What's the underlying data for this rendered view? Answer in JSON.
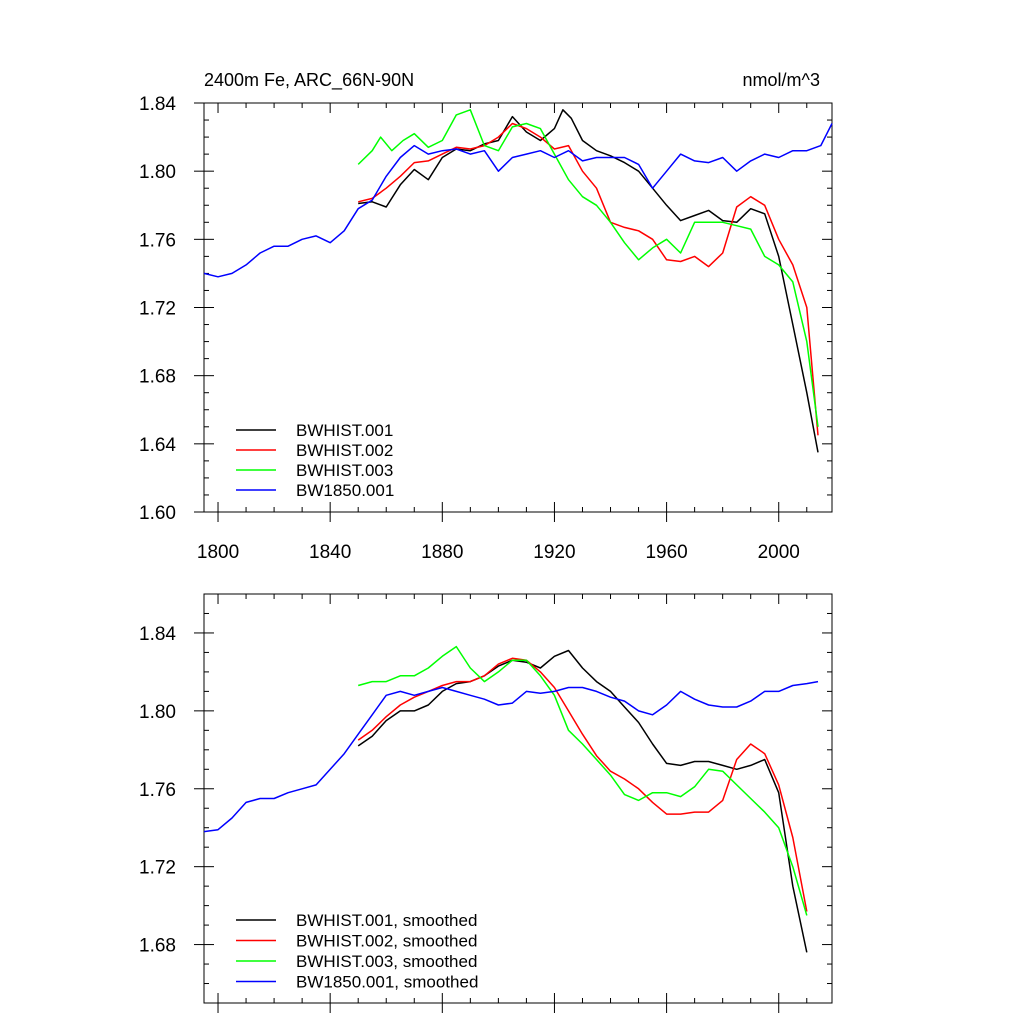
{
  "chart_data": [
    {
      "type": "line",
      "title_left": "2400m Fe, ARC_66N-90N",
      "title_right": "nmol/m^3",
      "xlim": [
        1795,
        2019
      ],
      "ylim": [
        1.6,
        1.84
      ],
      "xticks": [
        1800,
        1840,
        1880,
        1920,
        1960,
        2000
      ],
      "xtick_labels": [
        "1800",
        "1840",
        "1880",
        "1920",
        "1960",
        "2000"
      ],
      "yticks": [
        1.6,
        1.64,
        1.68,
        1.72,
        1.76,
        1.8,
        1.84
      ],
      "ytick_labels": [
        "1.60",
        "1.64",
        "1.68",
        "1.72",
        "1.76",
        "1.80",
        "1.84"
      ],
      "series": [
        {
          "name": "BWHIST.001",
          "color": "#000000",
          "x": [
            1850,
            1855,
            1860,
            1865,
            1870,
            1875,
            1880,
            1885,
            1890,
            1895,
            1900,
            1905,
            1910,
            1915,
            1920,
            1923,
            1926,
            1930,
            1935,
            1940,
            1945,
            1950,
            1955,
            1960,
            1965,
            1970,
            1975,
            1980,
            1985,
            1990,
            1995,
            2000,
            2005,
            2010,
            2014
          ],
          "y": [
            1.781,
            1.782,
            1.779,
            1.792,
            1.801,
            1.795,
            1.808,
            1.813,
            1.812,
            1.816,
            1.818,
            1.832,
            1.823,
            1.818,
            1.825,
            1.836,
            1.831,
            1.818,
            1.812,
            1.809,
            1.805,
            1.8,
            1.79,
            1.78,
            1.771,
            1.774,
            1.777,
            1.771,
            1.77,
            1.778,
            1.775,
            1.75,
            1.71,
            1.67,
            1.635
          ]
        },
        {
          "name": "BWHIST.002",
          "color": "#ff0000",
          "x": [
            1850,
            1855,
            1860,
            1865,
            1870,
            1875,
            1880,
            1885,
            1890,
            1895,
            1900,
            1905,
            1910,
            1915,
            1920,
            1925,
            1930,
            1935,
            1940,
            1945,
            1950,
            1955,
            1960,
            1965,
            1970,
            1975,
            1980,
            1985,
            1990,
            1995,
            2000,
            2005,
            2010,
            2014
          ],
          "y": [
            1.782,
            1.784,
            1.79,
            1.797,
            1.805,
            1.806,
            1.81,
            1.814,
            1.813,
            1.815,
            1.82,
            1.828,
            1.825,
            1.82,
            1.813,
            1.815,
            1.8,
            1.79,
            1.77,
            1.767,
            1.765,
            1.76,
            1.748,
            1.747,
            1.75,
            1.744,
            1.752,
            1.779,
            1.785,
            1.78,
            1.76,
            1.745,
            1.72,
            1.645
          ]
        },
        {
          "name": "BWHIST.003",
          "color": "#00ff00",
          "x": [
            1850,
            1855,
            1858,
            1862,
            1866,
            1870,
            1875,
            1880,
            1885,
            1890,
            1895,
            1900,
            1905,
            1910,
            1915,
            1920,
            1925,
            1930,
            1935,
            1940,
            1945,
            1950,
            1955,
            1960,
            1965,
            1970,
            1975,
            1980,
            1985,
            1990,
            1995,
            2000,
            2005,
            2010,
            2014
          ],
          "y": [
            1.804,
            1.812,
            1.82,
            1.812,
            1.818,
            1.822,
            1.814,
            1.818,
            1.833,
            1.836,
            1.815,
            1.812,
            1.826,
            1.828,
            1.825,
            1.81,
            1.795,
            1.785,
            1.78,
            1.77,
            1.758,
            1.748,
            1.755,
            1.76,
            1.752,
            1.77,
            1.77,
            1.77,
            1.768,
            1.766,
            1.75,
            1.745,
            1.735,
            1.7,
            1.65
          ]
        },
        {
          "name": "BW1850.001",
          "color": "#0000ff",
          "x": [
            1795,
            1800,
            1805,
            1810,
            1815,
            1820,
            1825,
            1830,
            1835,
            1840,
            1845,
            1850,
            1855,
            1860,
            1865,
            1870,
            1875,
            1880,
            1885,
            1890,
            1895,
            1900,
            1905,
            1910,
            1915,
            1920,
            1925,
            1930,
            1935,
            1940,
            1945,
            1950,
            1955,
            1960,
            1965,
            1970,
            1975,
            1980,
            1985,
            1990,
            1995,
            2000,
            2005,
            2010,
            2015,
            2019
          ],
          "y": [
            1.74,
            1.738,
            1.74,
            1.745,
            1.752,
            1.756,
            1.756,
            1.76,
            1.762,
            1.758,
            1.765,
            1.778,
            1.783,
            1.797,
            1.808,
            1.815,
            1.81,
            1.812,
            1.813,
            1.81,
            1.812,
            1.8,
            1.808,
            1.81,
            1.812,
            1.808,
            1.812,
            1.806,
            1.808,
            1.808,
            1.808,
            1.804,
            1.79,
            1.8,
            1.81,
            1.806,
            1.805,
            1.808,
            1.8,
            1.806,
            1.81,
            1.808,
            1.812,
            1.812,
            1.815,
            1.828
          ]
        }
      ],
      "legend": [
        "BWHIST.001",
        "BWHIST.002",
        "BWHIST.003",
        "BW1850.001"
      ],
      "legend_position": "bottom-left"
    },
    {
      "type": "line",
      "xlim": [
        1795,
        2019
      ],
      "ylim": [
        1.65,
        1.86
      ],
      "xticks": [
        1800,
        1840,
        1880,
        1920,
        1960,
        2000
      ],
      "yticks": [
        1.68,
        1.72,
        1.76,
        1.8,
        1.84
      ],
      "ytick_labels": [
        "1.68",
        "1.72",
        "1.76",
        "1.80",
        "1.84"
      ],
      "series": [
        {
          "name": "BWHIST.001, smoothed",
          "color": "#000000",
          "x": [
            1850,
            1855,
            1860,
            1865,
            1870,
            1875,
            1880,
            1885,
            1890,
            1895,
            1900,
            1905,
            1910,
            1915,
            1920,
            1925,
            1930,
            1935,
            1940,
            1945,
            1950,
            1955,
            1960,
            1965,
            1970,
            1975,
            1980,
            1985,
            1990,
            1995,
            2000,
            2005,
            2010
          ],
          "y": [
            1.782,
            1.787,
            1.795,
            1.8,
            1.8,
            1.803,
            1.81,
            1.814,
            1.815,
            1.818,
            1.823,
            1.826,
            1.825,
            1.822,
            1.828,
            1.831,
            1.822,
            1.815,
            1.81,
            1.802,
            1.794,
            1.783,
            1.773,
            1.772,
            1.774,
            1.774,
            1.772,
            1.77,
            1.772,
            1.775,
            1.758,
            1.71,
            1.676
          ]
        },
        {
          "name": "BWHIST.002, smoothed",
          "color": "#ff0000",
          "x": [
            1850,
            1855,
            1860,
            1865,
            1870,
            1875,
            1880,
            1885,
            1890,
            1895,
            1900,
            1905,
            1910,
            1915,
            1920,
            1925,
            1930,
            1935,
            1940,
            1945,
            1950,
            1955,
            1960,
            1965,
            1970,
            1975,
            1980,
            1985,
            1990,
            1995,
            2000,
            2005,
            2010
          ],
          "y": [
            1.785,
            1.79,
            1.797,
            1.803,
            1.807,
            1.81,
            1.813,
            1.815,
            1.815,
            1.818,
            1.824,
            1.827,
            1.826,
            1.82,
            1.812,
            1.8,
            1.788,
            1.777,
            1.769,
            1.765,
            1.76,
            1.753,
            1.747,
            1.747,
            1.748,
            1.748,
            1.754,
            1.775,
            1.783,
            1.778,
            1.762,
            1.735,
            1.697
          ]
        },
        {
          "name": "BWHIST.003, smoothed",
          "color": "#00ff00",
          "x": [
            1850,
            1855,
            1860,
            1865,
            1870,
            1875,
            1880,
            1885,
            1890,
            1895,
            1900,
            1905,
            1910,
            1915,
            1920,
            1925,
            1930,
            1935,
            1940,
            1945,
            1950,
            1955,
            1960,
            1965,
            1970,
            1975,
            1980,
            1985,
            1990,
            1995,
            2000,
            2005,
            2010
          ],
          "y": [
            1.813,
            1.815,
            1.815,
            1.818,
            1.818,
            1.822,
            1.828,
            1.833,
            1.822,
            1.815,
            1.82,
            1.826,
            1.826,
            1.818,
            1.808,
            1.79,
            1.783,
            1.775,
            1.767,
            1.757,
            1.754,
            1.758,
            1.758,
            1.756,
            1.761,
            1.77,
            1.769,
            1.762,
            1.755,
            1.748,
            1.74,
            1.72,
            1.695
          ]
        },
        {
          "name": "BW1850.001, smoothed",
          "color": "#0000ff",
          "x": [
            1795,
            1800,
            1805,
            1810,
            1815,
            1820,
            1825,
            1830,
            1835,
            1840,
            1845,
            1850,
            1855,
            1860,
            1865,
            1870,
            1875,
            1880,
            1885,
            1890,
            1895,
            1900,
            1905,
            1910,
            1915,
            1920,
            1925,
            1930,
            1935,
            1940,
            1945,
            1950,
            1955,
            1960,
            1965,
            1970,
            1975,
            1980,
            1985,
            1990,
            1995,
            2000,
            2005,
            2010,
            2014
          ],
          "y": [
            1.738,
            1.739,
            1.745,
            1.753,
            1.755,
            1.755,
            1.758,
            1.76,
            1.762,
            1.77,
            1.778,
            1.788,
            1.798,
            1.808,
            1.81,
            1.808,
            1.81,
            1.812,
            1.81,
            1.808,
            1.806,
            1.803,
            1.804,
            1.81,
            1.809,
            1.81,
            1.812,
            1.812,
            1.81,
            1.807,
            1.805,
            1.8,
            1.798,
            1.803,
            1.81,
            1.806,
            1.803,
            1.802,
            1.802,
            1.805,
            1.81,
            1.81,
            1.813,
            1.814,
            1.815
          ]
        }
      ],
      "legend": [
        "BWHIST.001, smoothed",
        "BWHIST.002, smoothed",
        "BWHIST.003, smoothed",
        "BW1850.001, smoothed"
      ],
      "legend_position": "bottom-left"
    }
  ]
}
